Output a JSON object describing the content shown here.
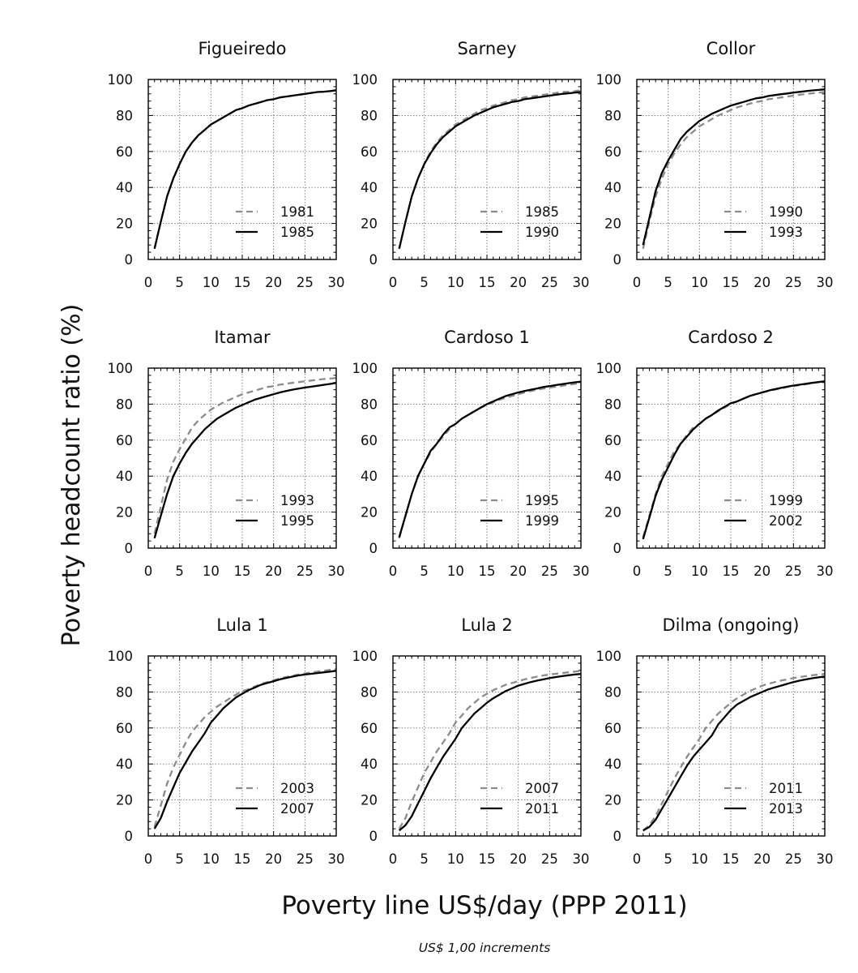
{
  "figure": {
    "ylabel": "Poverty headcount ratio (%)",
    "xlabel": "Poverty line US$/day (PPP 2011)",
    "footnote": "US$ 1,00 increments"
  },
  "chart_data": [
    {
      "type": "line",
      "title": "Figueiredo",
      "xlim": [
        0,
        30
      ],
      "ylim": [
        0,
        100
      ],
      "x_ticks": [
        0,
        5,
        10,
        15,
        20,
        25,
        30
      ],
      "y_ticks": [
        0,
        20,
        40,
        60,
        80,
        100
      ],
      "grid": true,
      "legend_position": "bottom-right",
      "x": [
        1,
        2,
        3,
        4,
        5,
        6,
        7,
        8,
        9,
        10,
        11,
        12,
        13,
        14,
        15,
        16,
        17,
        18,
        19,
        20,
        21,
        22,
        23,
        24,
        25,
        26,
        27,
        28,
        29,
        30
      ],
      "series": [
        {
          "name": "1981",
          "style": "dashed",
          "color": "#8c8c8c",
          "values": [
            6,
            21,
            35,
            45,
            53,
            60,
            65,
            69,
            72,
            75,
            77,
            79,
            81,
            83,
            84,
            85.5,
            86.5,
            87.5,
            88.5,
            89,
            90,
            90.5,
            91,
            91.5,
            92,
            92.5,
            93,
            93.2,
            93.5,
            94
          ]
        },
        {
          "name": "1985",
          "style": "solid",
          "color": "#000000",
          "values": [
            6,
            21,
            35,
            45,
            53,
            60,
            65,
            69,
            72,
            75,
            77,
            79,
            81,
            83,
            84,
            85.5,
            86.5,
            87.5,
            88.5,
            89,
            90,
            90.5,
            91,
            91.5,
            92,
            92.5,
            93,
            93.2,
            93.5,
            94
          ]
        }
      ]
    },
    {
      "type": "line",
      "title": "Sarney",
      "xlim": [
        0,
        30
      ],
      "ylim": [
        0,
        100
      ],
      "x_ticks": [
        0,
        5,
        10,
        15,
        20,
        25,
        30
      ],
      "y_ticks": [
        0,
        20,
        40,
        60,
        80,
        100
      ],
      "grid": true,
      "legend_position": "bottom-right",
      "x": [
        1,
        2,
        3,
        4,
        5,
        6,
        7,
        8,
        9,
        10,
        11,
        12,
        13,
        14,
        15,
        16,
        17,
        18,
        19,
        20,
        21,
        22,
        23,
        24,
        25,
        26,
        27,
        28,
        29,
        30
      ],
      "series": [
        {
          "name": "1985",
          "style": "dashed",
          "color": "#8c8c8c",
          "values": [
            6,
            21,
            35,
            45,
            53,
            60,
            65,
            69,
            72,
            75,
            77,
            79,
            81,
            83,
            84,
            85.5,
            86.5,
            87.5,
            88.5,
            89,
            90,
            90.5,
            91,
            91.5,
            92,
            92.5,
            93,
            93.2,
            93.5,
            94
          ]
        },
        {
          "name": "1990",
          "style": "solid",
          "color": "#000000",
          "values": [
            6,
            21,
            35,
            45,
            53,
            59,
            64,
            68,
            71,
            74,
            76,
            78,
            80,
            81.5,
            83,
            84.5,
            85.5,
            86.5,
            87.5,
            88,
            89,
            89.5,
            90,
            90.5,
            91,
            91.5,
            92,
            92.3,
            92.7,
            93
          ]
        }
      ]
    },
    {
      "type": "line",
      "title": "Collor",
      "xlim": [
        0,
        30
      ],
      "ylim": [
        0,
        100
      ],
      "x_ticks": [
        0,
        5,
        10,
        15,
        20,
        25,
        30
      ],
      "y_ticks": [
        0,
        20,
        40,
        60,
        80,
        100
      ],
      "grid": true,
      "legend_position": "bottom-right",
      "x": [
        1,
        2,
        3,
        4,
        5,
        6,
        7,
        8,
        9,
        10,
        11,
        12,
        13,
        14,
        15,
        16,
        17,
        18,
        19,
        20,
        21,
        22,
        23,
        24,
        25,
        26,
        27,
        28,
        29,
        30
      ],
      "series": [
        {
          "name": "1990",
          "style": "dashed",
          "color": "#8c8c8c",
          "values": [
            6,
            21,
            35,
            45,
            53,
            59,
            64,
            68,
            71,
            74,
            76,
            78,
            80,
            81.5,
            83,
            84.5,
            85.5,
            86.5,
            87.5,
            88,
            89,
            89.5,
            90,
            90.5,
            91,
            91.5,
            92,
            92.3,
            92.7,
            93
          ]
        },
        {
          "name": "1993",
          "style": "solid",
          "color": "#000000",
          "values": [
            8,
            23,
            38,
            48,
            55,
            61,
            67,
            71,
            74,
            77,
            79,
            81,
            82.5,
            84,
            85.5,
            86.5,
            87.5,
            88.5,
            89.5,
            90,
            90.8,
            91.3,
            91.8,
            92.2,
            92.7,
            93.1,
            93.5,
            93.9,
            94.2,
            94.5
          ]
        }
      ]
    },
    {
      "type": "line",
      "title": "Itamar",
      "xlim": [
        0,
        30
      ],
      "ylim": [
        0,
        100
      ],
      "x_ticks": [
        0,
        5,
        10,
        15,
        20,
        25,
        30
      ],
      "y_ticks": [
        0,
        20,
        40,
        60,
        80,
        100
      ],
      "grid": true,
      "legend_position": "bottom-right",
      "x": [
        1,
        2,
        3,
        4,
        5,
        6,
        7,
        8,
        9,
        10,
        11,
        12,
        13,
        14,
        15,
        16,
        17,
        18,
        19,
        20,
        21,
        22,
        23,
        24,
        25,
        26,
        27,
        28,
        29,
        30
      ],
      "series": [
        {
          "name": "1993",
          "style": "dashed",
          "color": "#8c8c8c",
          "values": [
            8,
            23,
            38,
            48,
            55,
            61,
            67,
            71,
            74,
            77,
            79,
            81,
            82.5,
            84,
            85.5,
            86.5,
            87.5,
            88.5,
            89.5,
            90,
            90.8,
            91.3,
            91.8,
            92.2,
            92.7,
            93.1,
            93.5,
            93.9,
            94.2,
            94.5
          ]
        },
        {
          "name": "1995",
          "style": "solid",
          "color": "#000000",
          "values": [
            5.5,
            18,
            30,
            40,
            47,
            53,
            58,
            62,
            66,
            69,
            72,
            74,
            76,
            78,
            79.5,
            81,
            82.5,
            83.5,
            84.5,
            85.5,
            86.5,
            87.3,
            88,
            88.6,
            89.2,
            89.7,
            90.2,
            90.7,
            91.2,
            91.8
          ]
        }
      ]
    },
    {
      "type": "line",
      "title": "Cardoso 1",
      "xlim": [
        0,
        30
      ],
      "ylim": [
        0,
        100
      ],
      "x_ticks": [
        0,
        5,
        10,
        15,
        20,
        25,
        30
      ],
      "y_ticks": [
        0,
        20,
        40,
        60,
        80,
        100
      ],
      "grid": true,
      "legend_position": "bottom-right",
      "x": [
        1,
        2,
        3,
        4,
        5,
        6,
        7,
        8,
        9,
        10,
        11,
        12,
        13,
        14,
        15,
        16,
        17,
        18,
        19,
        20,
        21,
        22,
        23,
        24,
        25,
        26,
        27,
        28,
        29,
        30
      ],
      "series": [
        {
          "name": "1995",
          "style": "dashed",
          "color": "#8c8c8c",
          "values": [
            5.5,
            18,
            30,
            40,
            47,
            53,
            58,
            62,
            66,
            69,
            72,
            74,
            76,
            78,
            79.5,
            81,
            82.5,
            83.5,
            84.5,
            85.5,
            86.5,
            87.3,
            88,
            88.6,
            89.2,
            89.7,
            90.2,
            90.7,
            91.2,
            91.8
          ]
        },
        {
          "name": "1999",
          "style": "solid",
          "color": "#000000",
          "values": [
            6,
            18,
            30,
            40,
            47,
            54,
            58,
            63,
            67,
            69,
            72,
            74,
            76,
            78,
            80,
            81.5,
            83,
            84.5,
            85.5,
            86.5,
            87.3,
            88,
            88.7,
            89.5,
            90,
            90.6,
            91.1,
            91.6,
            92.1,
            92.5
          ]
        }
      ]
    },
    {
      "type": "line",
      "title": "Cardoso 2",
      "xlim": [
        0,
        30
      ],
      "ylim": [
        0,
        100
      ],
      "x_ticks": [
        0,
        5,
        10,
        15,
        20,
        25,
        30
      ],
      "y_ticks": [
        0,
        20,
        40,
        60,
        80,
        100
      ],
      "grid": true,
      "legend_position": "bottom-right",
      "x": [
        1,
        2,
        3,
        4,
        5,
        6,
        7,
        8,
        9,
        10,
        11,
        12,
        13,
        14,
        15,
        16,
        17,
        18,
        19,
        20,
        21,
        22,
        23,
        24,
        25,
        26,
        27,
        28,
        29,
        30
      ],
      "series": [
        {
          "name": "1999",
          "style": "dashed",
          "color": "#8c8c8c",
          "values": [
            6,
            18,
            30,
            40,
            47,
            54,
            58,
            63,
            67,
            69,
            72,
            74,
            76,
            78,
            80,
            81.5,
            83,
            84.5,
            85.5,
            86.5,
            87.3,
            88,
            88.7,
            89.5,
            90,
            90.6,
            91.1,
            91.6,
            92.1,
            92.5
          ]
        },
        {
          "name": "2002",
          "style": "solid",
          "color": "#000000",
          "values": [
            5,
            17,
            29,
            38,
            45,
            52,
            58,
            62,
            66,
            69,
            72,
            74,
            76.5,
            78.5,
            80.5,
            81.5,
            83,
            84.5,
            85.5,
            86.5,
            87.5,
            88.3,
            89,
            89.7,
            90.3,
            90.8,
            91.3,
            91.8,
            92.3,
            92.7
          ]
        }
      ]
    },
    {
      "type": "line",
      "title": "Lula 1",
      "xlim": [
        0,
        30
      ],
      "ylim": [
        0,
        100
      ],
      "x_ticks": [
        0,
        5,
        10,
        15,
        20,
        25,
        30
      ],
      "y_ticks": [
        0,
        20,
        40,
        60,
        80,
        100
      ],
      "grid": true,
      "legend_position": "bottom-right",
      "x": [
        1,
        2,
        3,
        4,
        5,
        6,
        7,
        8,
        9,
        10,
        11,
        12,
        13,
        14,
        15,
        16,
        17,
        18,
        19,
        20,
        21,
        22,
        23,
        24,
        25,
        26,
        27,
        28,
        29,
        30
      ],
      "series": [
        {
          "name": "2003",
          "style": "dashed",
          "color": "#8c8c8c",
          "values": [
            5,
            17,
            29,
            38,
            45,
            52,
            58,
            62,
            66,
            69,
            72,
            74,
            76.5,
            78.5,
            80.5,
            81.5,
            83,
            84.5,
            85.5,
            86.5,
            87.5,
            88.3,
            89,
            89.7,
            90.3,
            90.8,
            91.3,
            91.8,
            92.3,
            92.7
          ]
        },
        {
          "name": "2007",
          "style": "solid",
          "color": "#000000",
          "values": [
            4,
            10,
            19,
            27,
            35,
            41,
            47,
            52,
            57,
            63,
            67,
            71,
            74,
            77,
            79,
            81,
            82.5,
            84,
            85,
            86,
            87,
            87.8,
            88.5,
            89.2,
            89.7,
            90.1,
            90.5,
            90.9,
            91.3,
            91.7
          ]
        }
      ]
    },
    {
      "type": "line",
      "title": "Lula 2",
      "xlim": [
        0,
        30
      ],
      "ylim": [
        0,
        100
      ],
      "x_ticks": [
        0,
        5,
        10,
        15,
        20,
        25,
        30
      ],
      "y_ticks": [
        0,
        20,
        40,
        60,
        80,
        100
      ],
      "grid": true,
      "legend_position": "bottom-right",
      "x": [
        1,
        2,
        3,
        4,
        5,
        6,
        7,
        8,
        9,
        10,
        11,
        12,
        13,
        14,
        15,
        16,
        17,
        18,
        19,
        20,
        21,
        22,
        23,
        24,
        25,
        26,
        27,
        28,
        29,
        30
      ],
      "series": [
        {
          "name": "2007",
          "style": "dashed",
          "color": "#8c8c8c",
          "values": [
            4,
            10,
            19,
            27,
            35,
            41,
            47,
            52,
            57,
            63,
            67,
            71,
            74,
            77,
            79,
            81,
            82.5,
            84,
            85,
            86,
            87,
            87.8,
            88.5,
            89.2,
            89.7,
            90.1,
            90.5,
            90.9,
            91.3,
            91.7
          ]
        },
        {
          "name": "2011",
          "style": "solid",
          "color": "#000000",
          "values": [
            3,
            6,
            11,
            18,
            25,
            32,
            38,
            44,
            49,
            54,
            60,
            64,
            68,
            71,
            74,
            76.5,
            78.5,
            80.5,
            82,
            83.5,
            84.5,
            85.5,
            86.3,
            87,
            87.7,
            88.3,
            88.8,
            89.3,
            89.7,
            90
          ]
        }
      ]
    },
    {
      "type": "line",
      "title": "Dilma (ongoing)",
      "xlim": [
        0,
        30
      ],
      "ylim": [
        0,
        100
      ],
      "x_ticks": [
        0,
        5,
        10,
        15,
        20,
        25,
        30
      ],
      "y_ticks": [
        0,
        20,
        40,
        60,
        80,
        100
      ],
      "grid": true,
      "legend_position": "bottom-right",
      "x": [
        1,
        2,
        3,
        4,
        5,
        6,
        7,
        8,
        9,
        10,
        11,
        12,
        13,
        14,
        15,
        16,
        17,
        18,
        19,
        20,
        21,
        22,
        23,
        24,
        25,
        26,
        27,
        28,
        29,
        30
      ],
      "series": [
        {
          "name": "2011",
          "style": "dashed",
          "color": "#8c8c8c",
          "values": [
            3,
            6,
            11,
            18,
            25,
            32,
            38,
            44,
            49,
            54,
            60,
            64,
            68,
            71,
            74,
            76.5,
            78.5,
            80.5,
            82,
            83.5,
            84.5,
            85.5,
            86.3,
            87,
            87.7,
            88.3,
            88.8,
            89.3,
            89.7,
            90
          ]
        },
        {
          "name": "2013",
          "style": "solid",
          "color": "#000000",
          "values": [
            3,
            5,
            9,
            15,
            21,
            27,
            33,
            39,
            44,
            48,
            52,
            56,
            62,
            66,
            70,
            73,
            75,
            77,
            78.5,
            80,
            81.5,
            82.5,
            83.5,
            84.5,
            85.5,
            86.3,
            87,
            87.6,
            88.1,
            88.6
          ]
        }
      ]
    }
  ]
}
